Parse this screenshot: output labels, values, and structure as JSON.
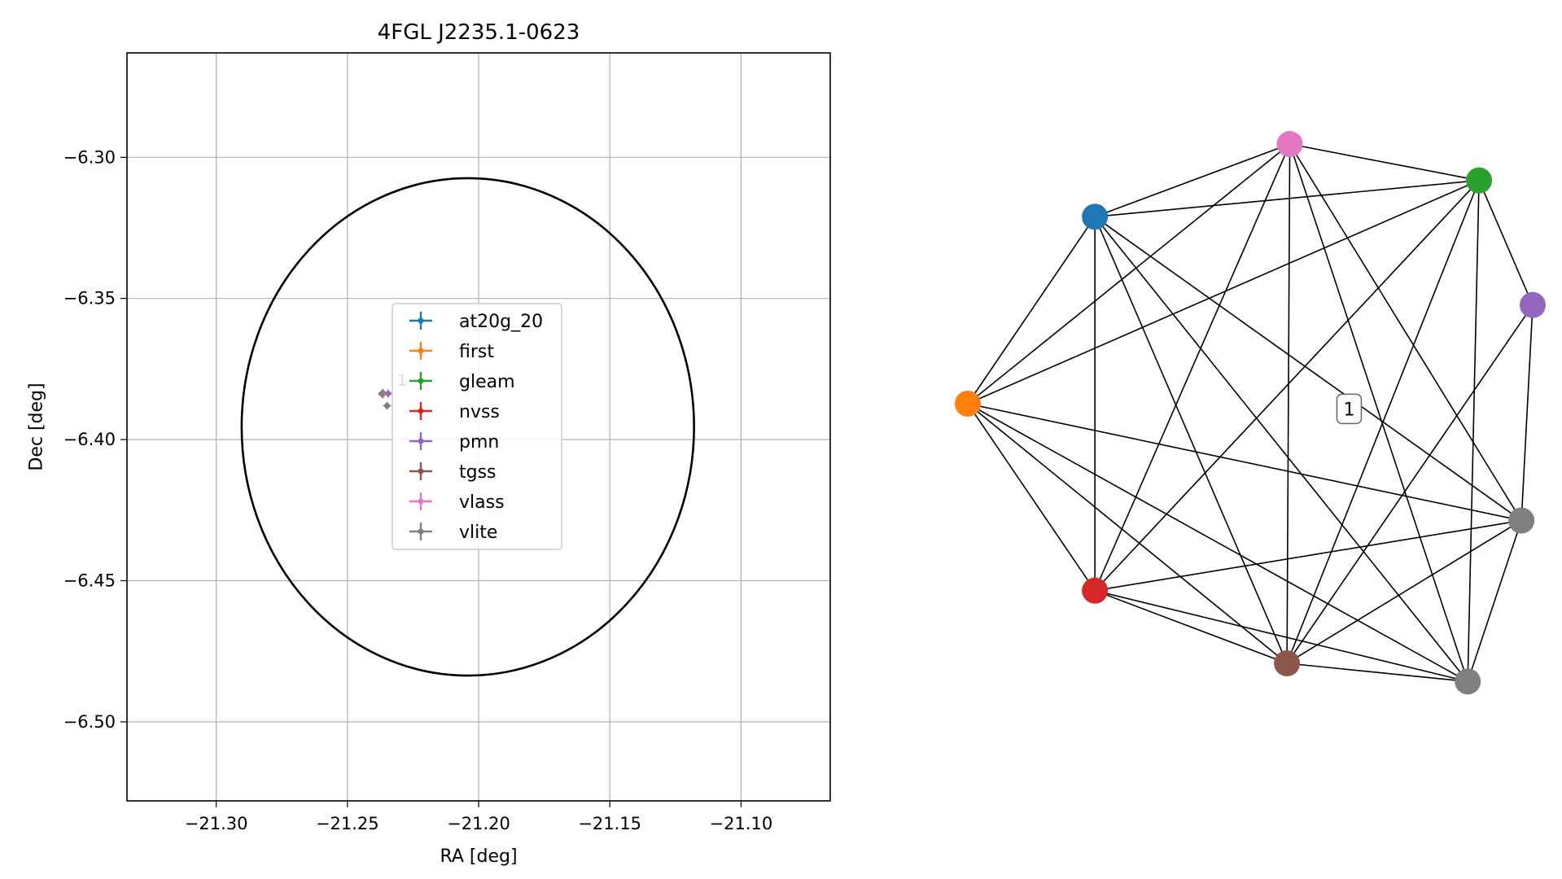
{
  "chart_data": [
    {
      "type": "scatter",
      "title": "4FGL J2235.1-0623",
      "xlabel": "RA [deg]",
      "ylabel": "Dec [deg]",
      "xlim": [
        -21.334,
        -21.066
      ],
      "ylim": [
        -6.528,
        -6.263
      ],
      "xticks": [
        -21.3,
        -21.25,
        -21.2,
        -21.15,
        -21.1
      ],
      "xtick_labels": [
        "−21.30",
        "−21.25",
        "−21.20",
        "−21.15",
        "−21.10"
      ],
      "yticks": [
        -6.3,
        -6.35,
        -6.4,
        -6.45,
        -6.5
      ],
      "ytick_labels": [
        "−6.30",
        "−6.35",
        "−6.40",
        "−6.45",
        "−6.50"
      ],
      "grid": true,
      "legend_position": "center",
      "ellipse": {
        "center": [
          -21.2041,
          -6.3955
        ],
        "semi_axis_ra": 0.0862,
        "semi_axis_dec": 0.0881,
        "color": "#000000"
      },
      "series": [
        {
          "name": "at20g_20",
          "color": "#1f77b4",
          "x": [
            -21.2365
          ],
          "y": [
            -6.3838
          ]
        },
        {
          "name": "first",
          "color": "#ff7f0e",
          "x": [],
          "y": []
        },
        {
          "name": "gleam",
          "color": "#2ca02c",
          "x": [
            -21.2365
          ],
          "y": [
            -6.3835
          ]
        },
        {
          "name": "nvss",
          "color": "#d62728",
          "x": [
            -21.2364
          ],
          "y": [
            -6.3838
          ]
        },
        {
          "name": "pmn",
          "color": "#9467bd",
          "x": [
            -21.2345
          ],
          "y": [
            -6.3837
          ]
        },
        {
          "name": "tgss",
          "color": "#8c564b",
          "x": [
            -21.2366
          ],
          "y": [
            -6.384
          ]
        },
        {
          "name": "vlass",
          "color": "#e377c2",
          "x": [
            -21.2364
          ],
          "y": [
            -6.3838
          ]
        },
        {
          "name": "vlite",
          "color": "#7f7f7f",
          "x": [
            -21.2367,
            -21.2349
          ],
          "y": [
            -6.3836,
            -6.388
          ]
        }
      ],
      "annotations": [
        {
          "text": "1",
          "x": -21.231,
          "y": -6.379,
          "color": "#b0b0b0"
        }
      ]
    },
    {
      "type": "graph",
      "nodes": [
        {
          "id": "at20g_20",
          "color": "#1f77b4",
          "x": -0.55,
          "y": 0.72
        },
        {
          "id": "first",
          "color": "#ff7f0e",
          "x": -1.0,
          "y": 0.0
        },
        {
          "id": "gleam",
          "color": "#2ca02c",
          "x": 0.81,
          "y": 0.86
        },
        {
          "id": "nvss",
          "color": "#d62728",
          "x": -0.55,
          "y": -0.72
        },
        {
          "id": "pmn",
          "color": "#9467bd",
          "x": 1.0,
          "y": 0.38
        },
        {
          "id": "tgss",
          "color": "#8c564b",
          "x": 0.13,
          "y": -1.0
        },
        {
          "id": "vlass",
          "color": "#e377c2",
          "x": 0.14,
          "y": 1.0
        },
        {
          "id": "vlite_a",
          "color": "#7f7f7f",
          "x": 0.96,
          "y": -0.45
        },
        {
          "id": "vlite_b",
          "color": "#7f7f7f",
          "x": 0.77,
          "y": -1.07
        }
      ],
      "edges": [
        [
          "vlass",
          "gleam"
        ],
        [
          "vlass",
          "at20g_20"
        ],
        [
          "vlass",
          "first"
        ],
        [
          "vlass",
          "nvss"
        ],
        [
          "vlass",
          "tgss"
        ],
        [
          "vlass",
          "vlite_a"
        ],
        [
          "vlass",
          "vlite_b"
        ],
        [
          "gleam",
          "at20g_20"
        ],
        [
          "gleam",
          "first"
        ],
        [
          "gleam",
          "nvss"
        ],
        [
          "gleam",
          "pmn"
        ],
        [
          "gleam",
          "tgss"
        ],
        [
          "gleam",
          "vlite_b"
        ],
        [
          "at20g_20",
          "first"
        ],
        [
          "at20g_20",
          "nvss"
        ],
        [
          "at20g_20",
          "tgss"
        ],
        [
          "at20g_20",
          "vlite_a"
        ],
        [
          "at20g_20",
          "vlite_b"
        ],
        [
          "first",
          "nvss"
        ],
        [
          "first",
          "tgss"
        ],
        [
          "first",
          "vlite_a"
        ],
        [
          "first",
          "vlite_b"
        ],
        [
          "nvss",
          "vlite_a"
        ],
        [
          "nvss",
          "tgss"
        ],
        [
          "nvss",
          "vlite_b"
        ],
        [
          "pmn",
          "tgss"
        ],
        [
          "pmn",
          "vlite_a"
        ],
        [
          "tgss",
          "vlite_a"
        ],
        [
          "tgss",
          "vlite_b"
        ],
        [
          "vlite_a",
          "vlite_b"
        ]
      ],
      "label": "1"
    }
  ]
}
